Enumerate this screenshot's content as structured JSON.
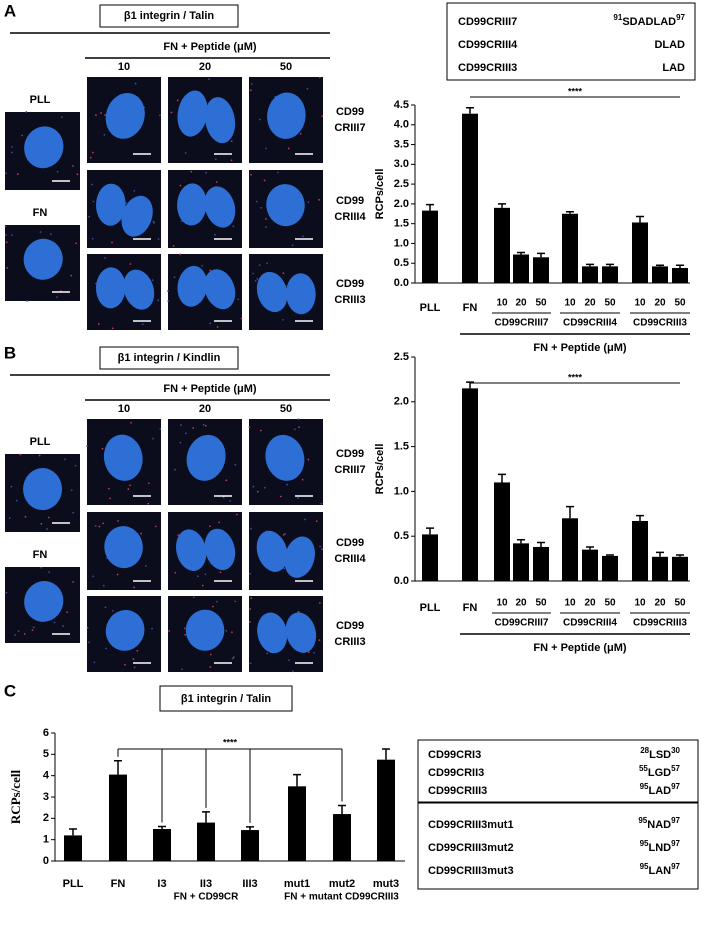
{
  "panels": [
    {
      "label": "A",
      "stain": "β1 integrin / Talin",
      "treatment": "FN + Peptide (μM)",
      "concentrations": [
        "10",
        "20",
        "50"
      ],
      "controls": [
        "PLL",
        "FN"
      ],
      "rows": [
        [
          "CD99",
          "CRIII7"
        ],
        [
          "CD99",
          "CRIII4"
        ],
        [
          "CD99",
          "CRIII3"
        ]
      ]
    },
    {
      "label": "B",
      "stain": "β1 integrin / Kindlin",
      "treatment": "FN + Peptide (μM)",
      "concentrations": [
        "10",
        "20",
        "50"
      ],
      "controls": [
        "PLL",
        "FN"
      ],
      "rows": [
        [
          "CD99",
          "CRIII7"
        ],
        [
          "CD99",
          "CRIII4"
        ],
        [
          "CD99",
          "CRIII3"
        ]
      ]
    },
    {
      "label": "C"
    }
  ],
  "peptide_table": [
    {
      "name": "CD99CRIII7",
      "start": "91",
      "seq": "SDADLAD",
      "end": "97"
    },
    {
      "name": "CD99CRIII4",
      "seq": "DLAD"
    },
    {
      "name": "CD99CRIII3",
      "seq": "LAD"
    }
  ],
  "sequence_tables": [
    [
      {
        "name": "CD99CRI3",
        "start": "28",
        "seq": "LSD",
        "end": "30"
      },
      {
        "name": "CD99CRII3",
        "start": "55",
        "seq": "LGD",
        "end": "57"
      },
      {
        "name": "CD99CRIII3",
        "start": "95",
        "seq": "LAD",
        "end": "97"
      }
    ],
    [
      {
        "name": "CD99CRIII3mut1",
        "start": "95",
        "seq": "NAD",
        "end": "97"
      },
      {
        "name": "CD99CRIII3mut2",
        "start": "95",
        "seq": "LND",
        "end": "97"
      },
      {
        "name": "CD99CRIII3mut3",
        "start": "95",
        "seq": "LAN",
        "end": "97"
      }
    ]
  ],
  "chart_data": [
    {
      "type": "bar",
      "ylabel": "RCPs/cell",
      "significance": "****",
      "categories": [
        "PLL",
        "FN",
        "10",
        "20",
        "50",
        "10",
        "20",
        "50",
        "10",
        "20",
        "50"
      ],
      "group_labels": [
        "CD99CRIII7",
        "CD99CRIII4",
        "CD99CRIII3"
      ],
      "xlabel": "FN + Peptide (μM)",
      "values": [
        1.83,
        4.28,
        1.9,
        0.72,
        0.65,
        1.75,
        0.42,
        0.42,
        1.53,
        0.42,
        0.38
      ],
      "errors": [
        0.15,
        0.15,
        0.1,
        0.05,
        0.1,
        0.05,
        0.05,
        0.05,
        0.15,
        0.03,
        0.07
      ],
      "color": "#000000",
      "ylim": [
        0,
        4.5
      ],
      "yticks": [
        {
          "value": 0,
          "label": "0.0"
        },
        0.5,
        {
          "value": 1,
          "label": "1.0"
        },
        1.5,
        {
          "value": 2,
          "label": "2.0"
        },
        2.5,
        {
          "value": 3,
          "label": "3.0"
        },
        3.5,
        {
          "value": 4,
          "label": "4.0"
        },
        4.5
      ]
    },
    {
      "type": "bar",
      "ylabel": "RCPs/cell",
      "significance": "****",
      "categories": [
        "PLL",
        "FN",
        "10",
        "20",
        "50",
        "10",
        "20",
        "50",
        "10",
        "20",
        "50"
      ],
      "group_labels": [
        "CD99CRIII7",
        "CD99CRIII4",
        "CD99CRIII3"
      ],
      "xlabel": "FN + Peptide (μM)",
      "values": [
        0.52,
        2.15,
        1.1,
        0.42,
        0.38,
        0.7,
        0.35,
        0.28,
        0.67,
        0.27,
        0.27
      ],
      "errors": [
        0.07,
        0.07,
        0.09,
        0.04,
        0.05,
        0.13,
        0.03,
        0.01,
        0.06,
        0.05,
        0.02
      ],
      "color": "#000000",
      "ylim": [
        0,
        2.5
      ],
      "yticks": [
        {
          "value": 0,
          "label": "0.0"
        },
        0.5,
        {
          "value": 1,
          "label": "1.0"
        },
        1.5,
        {
          "value": 2,
          "label": "2.0"
        },
        2.5
      ]
    },
    {
      "type": "bar",
      "title": "β1 integrin / Talin",
      "ylabel": "RCPs/cell",
      "significance": "****",
      "categories": [
        "PLL",
        "FN",
        "I3",
        "II3",
        "III3",
        "mut1",
        "mut2",
        "mut3"
      ],
      "group_labels": [
        "FN + CD99CR",
        "FN + mutant CD99CRIII3"
      ],
      "values": [
        1.2,
        4.05,
        1.5,
        1.8,
        1.45,
        3.5,
        2.2,
        4.75
      ],
      "errors": [
        0.3,
        0.65,
        0.12,
        0.5,
        0.15,
        0.55,
        0.4,
        0.5
      ],
      "color": "#000000",
      "ylim": [
        0,
        6
      ],
      "yticks": [
        0,
        1,
        2,
        3,
        4,
        5,
        6
      ]
    }
  ]
}
